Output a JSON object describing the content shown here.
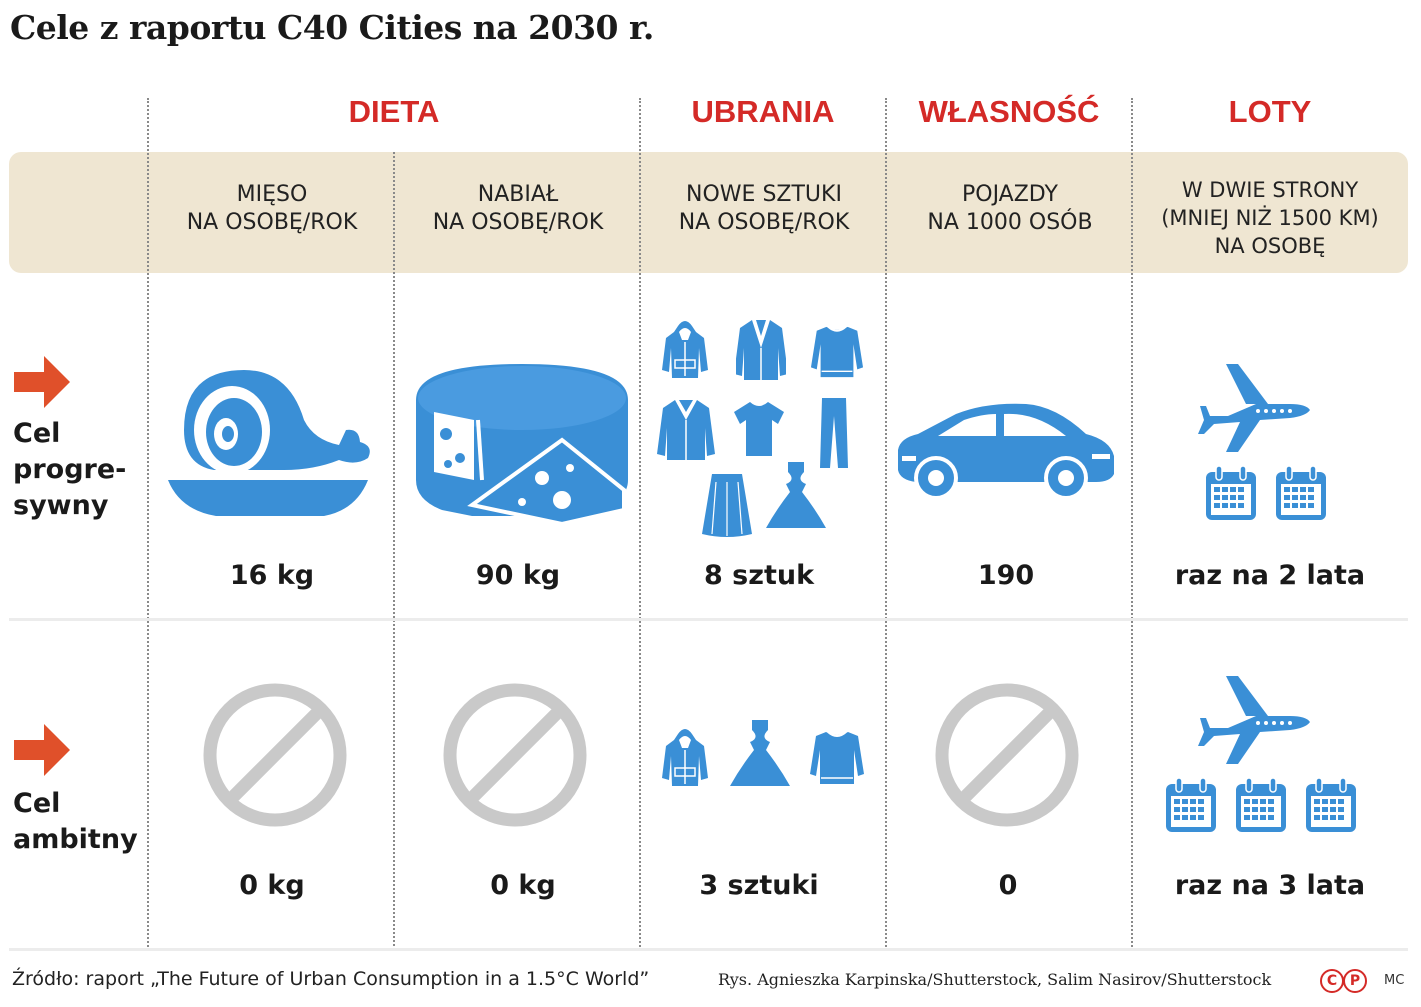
{
  "title": "Cele z raportu C40 Cities na 2030 r.",
  "categories": {
    "dieta": "DIETA",
    "ubrania": "UBRANIA",
    "wlasnosc": "WŁASNOŚĆ",
    "loty": "LOTY"
  },
  "columns": {
    "mieso": {
      "line1": "MIĘSO",
      "line2": "NA OSOBĘ/ROK"
    },
    "nabial": {
      "line1": "NABIAŁ",
      "line2": "NA OSOBĘ/ROK"
    },
    "ubrania": {
      "line1": "NOWE SZTUKI",
      "line2": "NA OSOBĘ/ROK"
    },
    "pojazdy": {
      "line1": "POJAZDY",
      "line2": "NA 1000 OSÓB"
    },
    "loty": {
      "line1": "W DWIE STRONY",
      "line2": "(MNIEJ NIŻ 1500 KM)",
      "line3": "NA OSOBĘ"
    }
  },
  "rows": {
    "progresywny": {
      "label1": "Cel",
      "label2": "progre-",
      "label3": "sywny",
      "mieso": "16 kg",
      "nabial": "90 kg",
      "ubrania": "8 sztuk",
      "pojazdy": "190",
      "loty": "raz na 2 lata"
    },
    "ambitny": {
      "label1": "Cel",
      "label2": "ambitny",
      "mieso": "0 kg",
      "nabial": "0 kg",
      "ubrania": "3 sztuki",
      "pojazdy": "0",
      "loty": "raz na 3 lata"
    }
  },
  "footer": {
    "source": "Źródło: raport „The Future of Urban Consumption in a 1.5°C World”",
    "credits": "Rys. Agnieszka Karpinska/Shutterstock, Salim Nasirov/Shutterstock",
    "badge_c": "C",
    "badge_p": "P",
    "initials": "MC"
  },
  "colors": {
    "icon_blue": "#3a8fd6",
    "accent_red": "#d42a27",
    "band_beige": "#efe6d2",
    "forbidden_grey": "#c9c9c9"
  },
  "icons": [
    "arrow-right-icon",
    "ham-icon",
    "cheese-icon",
    "hoodie-icon",
    "blazer-icon",
    "sweater-icon",
    "jacket-icon",
    "tshirt-icon",
    "trousers-icon",
    "skirt-icon",
    "dress-icon",
    "car-icon",
    "airplane-icon",
    "calendar-icon",
    "forbidden-icon"
  ]
}
